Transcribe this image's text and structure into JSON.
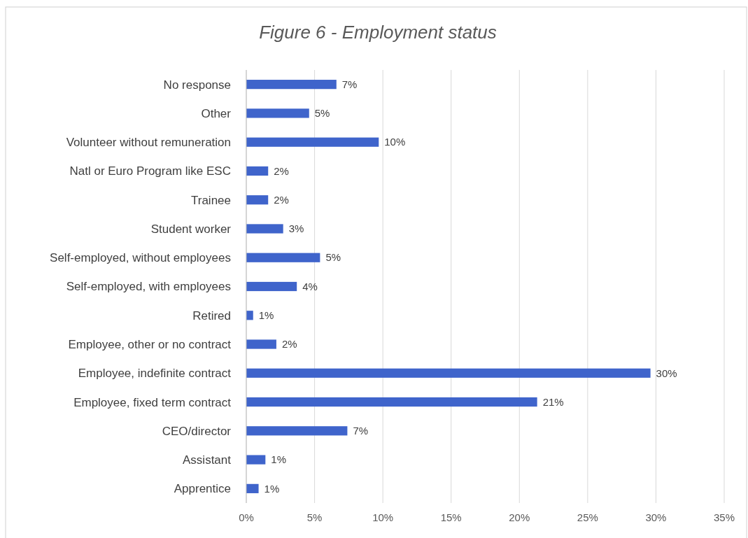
{
  "chart_data": {
    "type": "bar",
    "orientation": "horizontal",
    "title": "Figure 6 - Employment status",
    "categories": [
      "No response",
      "Other",
      "Volunteer without remuneration",
      "Natl or Euro Program like ESC",
      "Trainee",
      "Student worker",
      "Self-employed, without employees",
      "Self-employed, with employees",
      "Retired",
      "Employee, other or no contract",
      "Employee, indefinite contract",
      "Employee, fixed term contract",
      "CEO/director",
      "Assistant",
      "Apprentice"
    ],
    "values": [
      6.6,
      4.6,
      9.7,
      1.6,
      1.6,
      2.7,
      5.4,
      3.7,
      0.5,
      2.2,
      29.6,
      21.3,
      7.4,
      1.4,
      0.9
    ],
    "value_labels": [
      "7%",
      "5%",
      "10%",
      "2%",
      "2%",
      "3%",
      "5%",
      "4%",
      "1%",
      "2%",
      "30%",
      "21%",
      "7%",
      "1%",
      "1%"
    ],
    "color": "#3f64cb",
    "xlim": [
      0,
      35
    ],
    "xticks": [
      {
        "value": 0,
        "label": "0%"
      },
      {
        "value": 5,
        "label": "5%"
      },
      {
        "value": 10,
        "label": "10%"
      },
      {
        "value": 15,
        "label": "15%"
      },
      {
        "value": 20,
        "label": "20%"
      },
      {
        "value": 25,
        "label": "25%"
      },
      {
        "value": 30,
        "label": "30%"
      },
      {
        "value": 35,
        "label": "35%"
      }
    ],
    "grid": "x"
  }
}
